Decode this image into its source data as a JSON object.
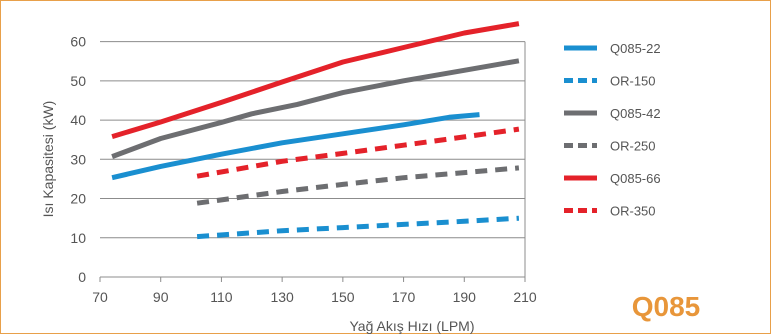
{
  "brand": {
    "text": "Q085",
    "color": "#e8963a"
  },
  "frame_color": "#e8a04a",
  "chart_data": {
    "type": "line",
    "title": "",
    "xlabel": "Yağ Akış Hızı (LPM)",
    "ylabel": "Isı Kapasitesi (kW)",
    "xlim": [
      70,
      210
    ],
    "ylim": [
      0,
      65
    ],
    "xticks": [
      70,
      90,
      110,
      130,
      150,
      170,
      190,
      210
    ],
    "yticks": [
      0,
      10,
      20,
      30,
      40,
      50,
      60
    ],
    "grid": "horizontal",
    "legend_position": "right",
    "series": [
      {
        "name": "Q085-22",
        "color": "#1a8fd0",
        "dashed": false,
        "points": [
          [
            74,
            25.3
          ],
          [
            90,
            28.2
          ],
          [
            110,
            31.3
          ],
          [
            130,
            34.2
          ],
          [
            150,
            36.5
          ],
          [
            170,
            38.8
          ],
          [
            185,
            40.7
          ],
          [
            195,
            41.4
          ]
        ]
      },
      {
        "name": "OR-150",
        "color": "#1a8fd0",
        "dashed": true,
        "points": [
          [
            102,
            10.3
          ],
          [
            130,
            11.8
          ],
          [
            150,
            12.6
          ],
          [
            170,
            13.4
          ],
          [
            190,
            14.2
          ],
          [
            208,
            15.0
          ]
        ]
      },
      {
        "name": "Q085-42",
        "color": "#6d6e71",
        "dashed": false,
        "points": [
          [
            74,
            30.7
          ],
          [
            90,
            35.3
          ],
          [
            110,
            39.4
          ],
          [
            120,
            41.6
          ],
          [
            135,
            44.0
          ],
          [
            150,
            47.0
          ],
          [
            170,
            50.0
          ],
          [
            190,
            52.7
          ],
          [
            208,
            55.1
          ]
        ]
      },
      {
        "name": "OR-250",
        "color": "#6d6e71",
        "dashed": true,
        "points": [
          [
            102,
            18.8
          ],
          [
            130,
            21.8
          ],
          [
            150,
            23.6
          ],
          [
            170,
            25.3
          ],
          [
            190,
            26.6
          ],
          [
            208,
            27.8
          ]
        ]
      },
      {
        "name": "Q085-66",
        "color": "#e4222a",
        "dashed": false,
        "points": [
          [
            74,
            35.8
          ],
          [
            90,
            39.5
          ],
          [
            110,
            44.5
          ],
          [
            130,
            49.7
          ],
          [
            150,
            54.8
          ],
          [
            170,
            58.5
          ],
          [
            190,
            62.2
          ],
          [
            208,
            64.6
          ]
        ]
      },
      {
        "name": "OR-350",
        "color": "#e4222a",
        "dashed": true,
        "points": [
          [
            102,
            25.7
          ],
          [
            130,
            29.5
          ],
          [
            150,
            31.5
          ],
          [
            170,
            33.6
          ],
          [
            190,
            35.7
          ],
          [
            208,
            37.7
          ]
        ]
      }
    ]
  }
}
